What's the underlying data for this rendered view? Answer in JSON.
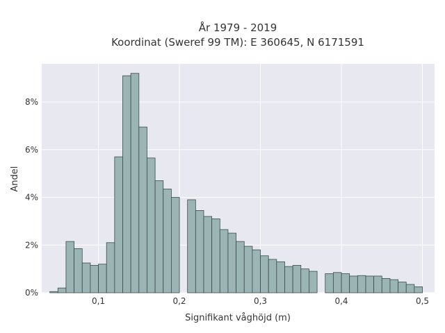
{
  "chart_data": {
    "type": "bar",
    "title": "År 1979 - 2019",
    "subtitle": "Koordinat (Sweref 99 TM): E 360645, N 6171591",
    "xlabel": "Signifikant våghöjd (m)",
    "ylabel": "Andel",
    "bin_width": 0.01,
    "bin_starts": [
      0.04,
      0.05,
      0.06,
      0.07,
      0.08,
      0.09,
      0.1,
      0.11,
      0.12,
      0.13,
      0.14,
      0.15,
      0.16,
      0.17,
      0.18,
      0.19,
      0.2,
      0.21,
      0.22,
      0.23,
      0.24,
      0.25,
      0.26,
      0.27,
      0.28,
      0.29,
      0.3,
      0.31,
      0.32,
      0.33,
      0.34,
      0.35,
      0.36,
      0.37,
      0.38,
      0.39,
      0.4,
      0.41,
      0.42,
      0.43,
      0.44,
      0.45,
      0.46,
      0.47,
      0.48,
      0.49
    ],
    "values": [
      0.05,
      0.2,
      2.15,
      1.85,
      1.25,
      1.15,
      1.2,
      2.1,
      5.7,
      9.1,
      9.2,
      6.95,
      5.65,
      4.7,
      4.35,
      4.0,
      0,
      3.9,
      3.45,
      3.2,
      3.1,
      2.65,
      2.5,
      2.15,
      1.95,
      1.8,
      1.55,
      1.4,
      1.3,
      1.1,
      1.15,
      1.0,
      0.9,
      0,
      0.8,
      0.85,
      0.8,
      0.7,
      0.72,
      0.7,
      0.7,
      0.6,
      0.55,
      0.45,
      0.35,
      0.25
    ],
    "xlim": [
      0.03,
      0.515
    ],
    "ylim": [
      0,
      9.6
    ],
    "xticks": [
      0.1,
      0.2,
      0.3,
      0.4,
      0.5
    ],
    "xtick_labels": [
      "0,1",
      "0,2",
      "0,3",
      "0,4",
      "0,5"
    ],
    "yticks": [
      0,
      2,
      4,
      6,
      8
    ],
    "ytick_labels": [
      "0%",
      "2%",
      "4%",
      "6%",
      "8%"
    ],
    "grid": true,
    "colors": {
      "bar_fill": "#9bb5b4",
      "bar_stroke": "#3a4a4a",
      "plot_bg": "#e8e8f0",
      "grid": "#ffffff"
    }
  }
}
